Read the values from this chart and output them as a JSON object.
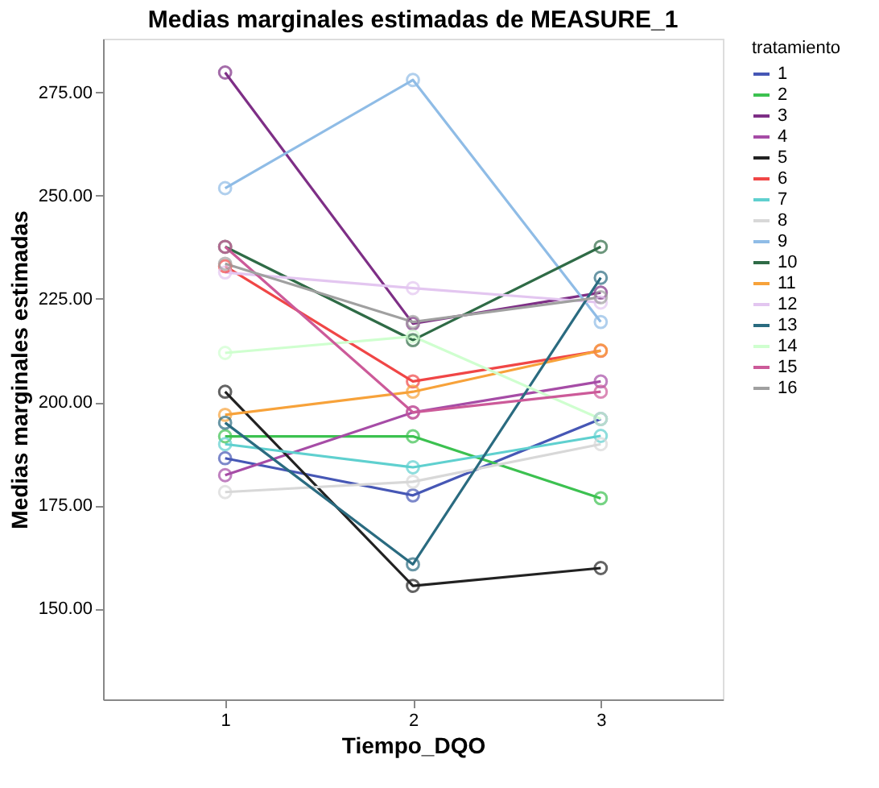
{
  "chart_data": {
    "type": "line",
    "title": "Medias marginales estimadas de MEASURE_1",
    "xlabel": "Tiempo_DQO",
    "ylabel": "Medias marginales estimadas",
    "legend_title": "tratamiento",
    "x": [
      1,
      2,
      3
    ],
    "xlim": [
      0.35,
      3.65
    ],
    "xticks": [
      1,
      2,
      3
    ],
    "ylim": [
      128,
      288
    ],
    "yticks": [
      {
        "value": 150,
        "label": "150.00"
      },
      {
        "value": 175,
        "label": "175.00"
      },
      {
        "value": 200,
        "label": "200.00"
      },
      {
        "value": 225,
        "label": "225.00"
      },
      {
        "value": 250,
        "label": "250.00"
      },
      {
        "value": 275,
        "label": "275.00"
      }
    ],
    "marker": "circle",
    "line_style": "solid",
    "grid": false,
    "legend": "right",
    "series": [
      {
        "name": "1",
        "color": "#4657b5",
        "values": [
          186.4,
          177.4,
          195.9
        ]
      },
      {
        "name": "2",
        "color": "#3cc150",
        "values": [
          191.7,
          191.7,
          176.7
        ]
      },
      {
        "name": "3",
        "color": "#7e2f86",
        "values": [
          279.8,
          219,
          226.5
        ]
      },
      {
        "name": "4",
        "color": "#a64ca6",
        "values": [
          182.3,
          197.5,
          205
        ]
      },
      {
        "name": "5",
        "color": "#222222",
        "values": [
          202.5,
          155.5,
          159.8
        ]
      },
      {
        "name": "6",
        "color": "#f04646",
        "values": [
          232.9,
          205,
          212.4
        ]
      },
      {
        "name": "7",
        "color": "#5fd0cf",
        "values": [
          189.8,
          184.2,
          191.8
        ]
      },
      {
        "name": "8",
        "color": "#d8d8d8",
        "values": [
          178.2,
          180.7,
          189.8
        ]
      },
      {
        "name": "9",
        "color": "#8fbce6",
        "values": [
          251.8,
          278,
          219.4
        ]
      },
      {
        "name": "10",
        "color": "#2f6b46",
        "values": [
          237.6,
          215,
          237.6
        ]
      },
      {
        "name": "11",
        "color": "#f7a23a",
        "values": [
          196.9,
          202.5,
          212.5
        ]
      },
      {
        "name": "12",
        "color": "#e3c6f0",
        "values": [
          231.4,
          227.6,
          224.1
        ]
      },
      {
        "name": "13",
        "color": "#2a6b80",
        "values": [
          195,
          160.7,
          230.1
        ]
      },
      {
        "name": "14",
        "color": "#cfffcf",
        "values": [
          211.9,
          215.9,
          195.9
        ]
      },
      {
        "name": "15",
        "color": "#cc5a99",
        "values": [
          237.6,
          197.5,
          202.5
        ]
      },
      {
        "name": "16",
        "color": "#a0a0a0",
        "values": [
          233.5,
          219.4,
          225.4
        ]
      }
    ]
  }
}
